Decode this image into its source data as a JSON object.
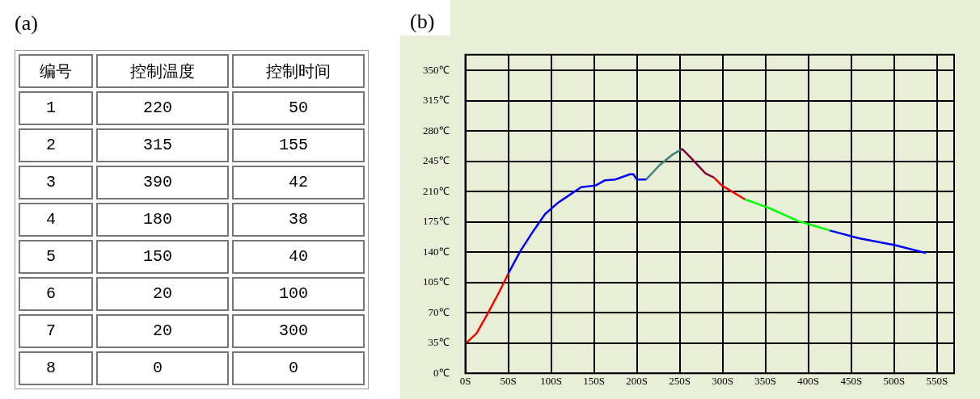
{
  "chart_data": [
    {
      "type": "other",
      "title": "(a)",
      "annotations": [
        "编号",
        "控制温度",
        "控制时间",
        "1",
        "220",
        "50",
        "2",
        "315",
        "155",
        "3",
        "390",
        "42",
        "4",
        "180",
        "38",
        "5",
        "150",
        "40",
        "6",
        "20",
        "100",
        "7",
        "20",
        "300",
        "8",
        "0",
        "0"
      ]
    },
    {
      "type": "line",
      "title": "(b)",
      "grid": true,
      "xlim": [
        0,
        570
      ],
      "ylim": [
        0,
        368
      ],
      "xticks": [
        {
          "value": 0,
          "label": "0S"
        },
        {
          "value": 50,
          "label": "50S"
        },
        {
          "value": 100,
          "label": "100S"
        },
        {
          "value": 150,
          "label": "150S"
        },
        {
          "value": 200,
          "label": "200S"
        },
        {
          "value": 250,
          "label": "250S"
        },
        {
          "value": 300,
          "label": "300S"
        },
        {
          "value": 350,
          "label": "350S"
        },
        {
          "value": 400,
          "label": "400S"
        },
        {
          "value": 450,
          "label": "450S"
        },
        {
          "value": 500,
          "label": "500S"
        },
        {
          "value": 550,
          "label": "550S"
        }
      ],
      "yticks": [
        {
          "value": 0,
          "label": "0℃"
        },
        {
          "value": 35,
          "label": "35℃"
        },
        {
          "value": 70,
          "label": "70℃"
        },
        {
          "value": 105,
          "label": "105℃"
        },
        {
          "value": 140,
          "label": "140℃"
        },
        {
          "value": 175,
          "label": "175℃"
        },
        {
          "value": 210,
          "label": "210℃"
        },
        {
          "value": 245,
          "label": "245℃"
        },
        {
          "value": 280,
          "label": "280℃"
        },
        {
          "value": 315,
          "label": "315℃"
        },
        {
          "value": 350,
          "label": "350℃"
        }
      ],
      "series": [
        {
          "color": "#ff0000",
          "x": [
            1,
            13,
            25,
            39,
            50
          ],
          "values": [
            35,
            46,
            67,
            93,
            115
          ]
        },
        {
          "color": "#0000ff",
          "x": [
            50,
            64,
            79,
            93,
            108,
            123,
            135,
            152,
            163,
            175,
            192,
            196,
            200,
            211
          ],
          "values": [
            115,
            141,
            164,
            184,
            197,
            207,
            215,
            217,
            223,
            224,
            230,
            230,
            224,
            224
          ]
        },
        {
          "color": "#408080",
          "x": [
            211,
            226,
            242,
            251
          ],
          "values": [
            224,
            240,
            253,
            258
          ]
        },
        {
          "color": "#800040",
          "x": [
            251,
            253,
            261,
            280,
            290
          ],
          "values": [
            258,
            259,
            251,
            231,
            226
          ]
        },
        {
          "color": "#ff0000",
          "x": [
            290,
            299,
            326
          ],
          "values": [
            226,
            217,
            201
          ]
        },
        {
          "color": "#00ff00",
          "x": [
            326,
            354,
            388,
            425
          ],
          "values": [
            201,
            191,
            176,
            165
          ]
        },
        {
          "color": "#0000ff",
          "x": [
            425,
            459,
            501,
            537
          ],
          "values": [
            165,
            156,
            148,
            139
          ]
        }
      ]
    }
  ]
}
